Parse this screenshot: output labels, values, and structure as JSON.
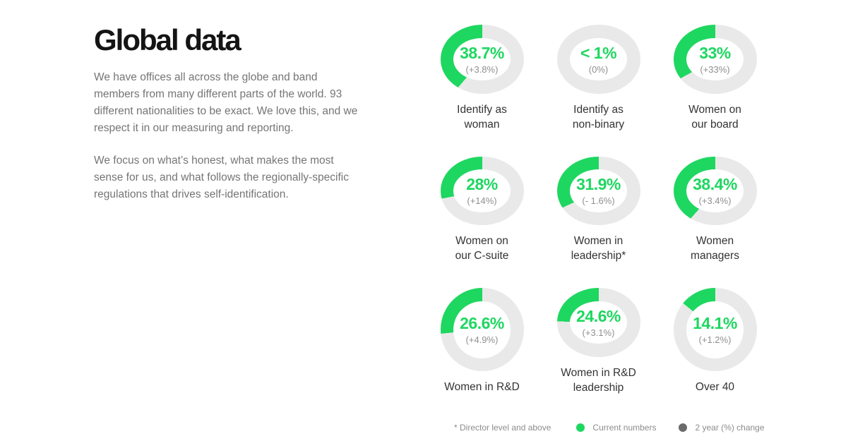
{
  "page": {
    "background_color": "#FFFFFF"
  },
  "intro": {
    "title": "Global data",
    "paragraph1": "We have offices all across the globe and band members from many different parts of the world. 93 different nationalities to be exact. We love this, and we respect it in our measuring and reporting.",
    "paragraph2": "We focus on what’s honest, what makes the most sense for us, and what follows the regionally-specific regulations that drives self-identification."
  },
  "chart_data": {
    "type": "pie",
    "subtype": "donut-grid",
    "title": "Global data",
    "layout": "3x3 grid of donut charts; green arc sweeps counterclockwise from 12 o'clock, remainder of ring is light gray; current value and 2-year change centered in hole, category label below",
    "colors": {
      "green": "#1ED760",
      "ring_gray": "#E9E9E9",
      "value_text": "#1ED760",
      "change_text": "#8F8F8F",
      "label_text": "#333333"
    },
    "charts": [
      {
        "percent": 38.7,
        "value": "38.7%",
        "change": "(+3.8%)",
        "label_line1": "Identify as",
        "label_line2": "woman"
      },
      {
        "percent": 0,
        "value": "< 1%",
        "change": "(0%)",
        "label_line1": "Identify as",
        "label_line2": "non-binary"
      },
      {
        "percent": 33,
        "value": "33%",
        "change": "(+33%)",
        "label_line1": "Women on",
        "label_line2": "our board"
      },
      {
        "percent": 28,
        "value": "28%",
        "change": "(+14%)",
        "label_line1": "Women on",
        "label_line2": "our C-suite"
      },
      {
        "percent": 31.9,
        "value": "31.9%",
        "change": "(- 1.6%)",
        "label_line1": "Women in",
        "label_line2": "leadership*"
      },
      {
        "percent": 38.4,
        "value": "38.4%",
        "change": "(+3.4%)",
        "label_line1": "Women",
        "label_line2": "managers"
      },
      {
        "percent": 26.6,
        "value": "26.6%",
        "change": "(+4.9%)",
        "label_line1": "Women in R&D",
        "label_line2": ""
      },
      {
        "percent": 24.6,
        "value": "24.6%",
        "change": "(+3.1%)",
        "label_line1": "Women in R&D",
        "label_line2": "leadership"
      },
      {
        "percent": 14.1,
        "value": "14.1%",
        "change": "(+1.2%)",
        "label_line1": "Over 40",
        "label_line2": ""
      }
    ]
  },
  "legend": {
    "footnote": "* Director level and above",
    "current_label": "Current numbers",
    "current_dot_color": "#1ED760",
    "change_label": "2 year (%) change",
    "change_dot_color": "#6B6B6B"
  }
}
